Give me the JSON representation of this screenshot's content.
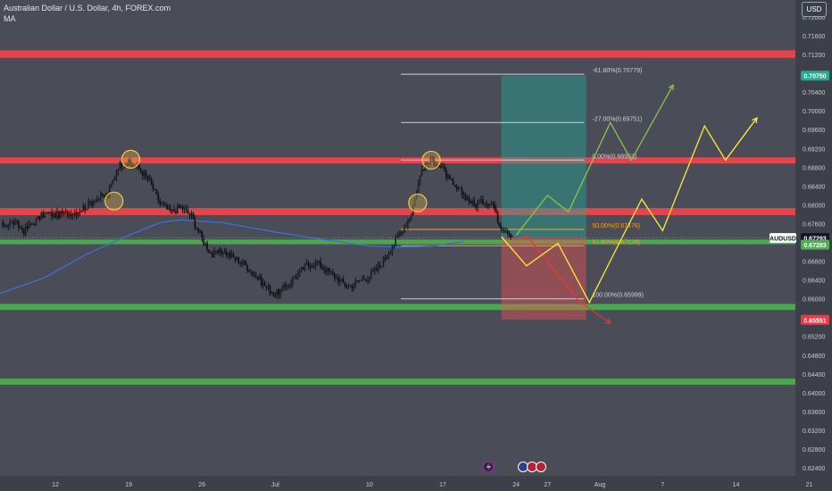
{
  "header": {
    "symbol_title": "Australian Dollar / U.S. Dollar, 4h, FOREX.com",
    "indicator": "MA",
    "currency": "USD"
  },
  "chart_data": {
    "type": "candlestick",
    "symbol": "AUDUSD",
    "ylim": [
      0.6223,
      0.7236
    ],
    "y_ticks": [
      0.624,
      0.628,
      0.632,
      0.636,
      0.64,
      0.644,
      0.648,
      0.652,
      0.656,
      0.66,
      0.664,
      0.668,
      0.672,
      0.676,
      0.68,
      0.684,
      0.688,
      0.692,
      0.696,
      0.7,
      0.704,
      0.708,
      0.712,
      0.716,
      0.72
    ],
    "x_ticks": [
      {
        "label": "12",
        "day": 0
      },
      {
        "label": "19",
        "day": 7
      },
      {
        "label": "26",
        "day": 14
      },
      {
        "label": "Jul",
        "day": 21
      },
      {
        "label": "10",
        "day": 30
      },
      {
        "label": "17",
        "day": 37
      },
      {
        "label": "24",
        "day": 44
      },
      {
        "label": "27",
        "day": 47
      },
      {
        "label": "Aug",
        "day": 52
      },
      {
        "label": "7",
        "day": 58
      },
      {
        "label": "14",
        "day": 65
      },
      {
        "label": "21",
        "day": 72
      }
    ],
    "price_labels": [
      {
        "text": "0.70750",
        "price": 0.7075,
        "color": "#22ab94"
      },
      {
        "text": "AUDUSD",
        "price": 0.67293,
        "color": "#ffffff",
        "text_color": "#131722"
      },
      {
        "text": "0.67293",
        "price": 0.67293,
        "color": "#131722"
      },
      {
        "text": "0.67283",
        "price": 0.67283,
        "color": "#4caf50"
      },
      {
        "text": "0.65551",
        "price": 0.65551,
        "color": "#f23645"
      }
    ],
    "zones": [
      {
        "kind": "resistance",
        "price_top": 0.7129,
        "price_bottom": 0.7113,
        "color": "#f0444c"
      },
      {
        "kind": "resistance",
        "price_top": 0.6901,
        "price_bottom": 0.6888,
        "color": "#f0444c"
      },
      {
        "kind": "resistance",
        "price_top": 0.6793,
        "price_bottom": 0.6778,
        "color": "#f0444c"
      },
      {
        "kind": "support",
        "price_top": 0.6726,
        "price_bottom": 0.6716,
        "color": "#4caf50"
      },
      {
        "kind": "support",
        "price_top": 0.6589,
        "price_bottom": 0.6576,
        "color": "#4caf50"
      },
      {
        "kind": "support",
        "price_top": 0.643,
        "price_bottom": 0.6417,
        "color": "#4caf50"
      }
    ],
    "fibonacci": [
      {
        "label": "-61.80%(0.70779)",
        "price": 0.70779,
        "color": "#cfd2d8"
      },
      {
        "label": "-27.00%(0.69751)",
        "price": 0.69751,
        "color": "#cfd2d8"
      },
      {
        "label": "0.00%(0.68953)",
        "price": 0.68953,
        "color": "#cfd2d8"
      },
      {
        "label": "50.00%(0.67476)",
        "price": 0.67476,
        "color": "#f5a623"
      },
      {
        "label": "61.80%(0.67128)",
        "price": 0.67128,
        "color": "#f5a623"
      },
      {
        "label": "100.00%(0.65999)",
        "price": 0.65999,
        "color": "#cfd2d8"
      }
    ],
    "position": {
      "entry": 0.6732,
      "target": 0.7075,
      "stop": 0.65551,
      "start_day": 42.6,
      "end_day": 50.7
    },
    "projections": [
      {
        "color": "#8bc34a",
        "points": [
          [
            44,
            0.6735
          ],
          [
            47,
            0.682
          ],
          [
            49,
            0.6785
          ],
          [
            53,
            0.6975
          ],
          [
            55,
            0.6895
          ],
          [
            59,
            0.7055
          ]
        ]
      },
      {
        "color": "#e53935",
        "points": [
          [
            44,
            0.6724
          ],
          [
            45,
            0.6735
          ],
          [
            50,
            0.6595
          ],
          [
            53,
            0.6548
          ]
        ]
      },
      {
        "color": "#ffeb3b",
        "points": [
          [
            42.6,
            0.6732
          ],
          [
            45,
            0.667
          ],
          [
            48,
            0.6718
          ],
          [
            51,
            0.6592
          ],
          [
            54,
            0.6725
          ],
          [
            56,
            0.6812
          ],
          [
            58,
            0.6745
          ],
          [
            62,
            0.6968
          ],
          [
            64,
            0.6895
          ],
          [
            67,
            0.6985
          ]
        ]
      }
    ],
    "highlights": [
      {
        "day": 5.6,
        "price": 0.6808
      },
      {
        "day": 7.2,
        "price": 0.6897
      },
      {
        "day": 34.6,
        "price": 0.6804
      },
      {
        "day": 35.9,
        "price": 0.6895
      }
    ],
    "moving_average": [
      [
        -15,
        0.6588
      ],
      [
        -7,
        0.6598
      ],
      [
        -1,
        0.6645
      ],
      [
        3,
        0.6695
      ],
      [
        7,
        0.6735
      ],
      [
        10,
        0.6762
      ],
      [
        12,
        0.6768
      ],
      [
        16,
        0.6762
      ],
      [
        21,
        0.6742
      ],
      [
        25,
        0.6728
      ],
      [
        30,
        0.6712
      ],
      [
        33,
        0.671
      ],
      [
        36,
        0.6712
      ],
      [
        39,
        0.6722
      ]
    ],
    "price_path": [
      [
        -15,
        0.6708
      ],
      [
        -12,
        0.6682
      ],
      [
        -10,
        0.6725
      ],
      [
        -8,
        0.6722
      ],
      [
        -6,
        0.6752
      ],
      [
        -4,
        0.6762
      ],
      [
        -3,
        0.6745
      ],
      [
        -1,
        0.6782
      ],
      [
        0,
        0.6778
      ],
      [
        2,
        0.6785
      ],
      [
        3,
        0.6798
      ],
      [
        4,
        0.6815
      ],
      [
        5,
        0.682
      ],
      [
        6,
        0.6884
      ],
      [
        7,
        0.6888
      ],
      [
        8,
        0.6878
      ],
      [
        9,
        0.685
      ],
      [
        10,
        0.6802
      ],
      [
        11,
        0.6785
      ],
      [
        12,
        0.6795
      ],
      [
        13,
        0.6776
      ],
      [
        14,
        0.6728
      ],
      [
        15,
        0.6692
      ],
      [
        16,
        0.6702
      ],
      [
        17,
        0.6688
      ],
      [
        18,
        0.6675
      ],
      [
        19,
        0.6652
      ],
      [
        20,
        0.6628
      ],
      [
        21,
        0.6609
      ],
      [
        22,
        0.6625
      ],
      [
        23,
        0.665
      ],
      [
        24,
        0.6672
      ],
      [
        25,
        0.6676
      ],
      [
        26,
        0.666
      ],
      [
        27,
        0.6642
      ],
      [
        28,
        0.6625
      ],
      [
        29,
        0.6638
      ],
      [
        30,
        0.6648
      ],
      [
        31,
        0.667
      ],
      [
        32,
        0.6705
      ],
      [
        33,
        0.6742
      ],
      [
        34,
        0.6782
      ],
      [
        35,
        0.6876
      ],
      [
        36,
        0.6898
      ],
      [
        37,
        0.6875
      ],
      [
        38,
        0.6838
      ],
      [
        39,
        0.6822
      ],
      [
        40,
        0.6799
      ],
      [
        41,
        0.6808
      ],
      [
        41.8,
        0.6802
      ],
      [
        42.4,
        0.6758
      ],
      [
        43.2,
        0.6745
      ],
      [
        43.8,
        0.6732
      ]
    ]
  }
}
